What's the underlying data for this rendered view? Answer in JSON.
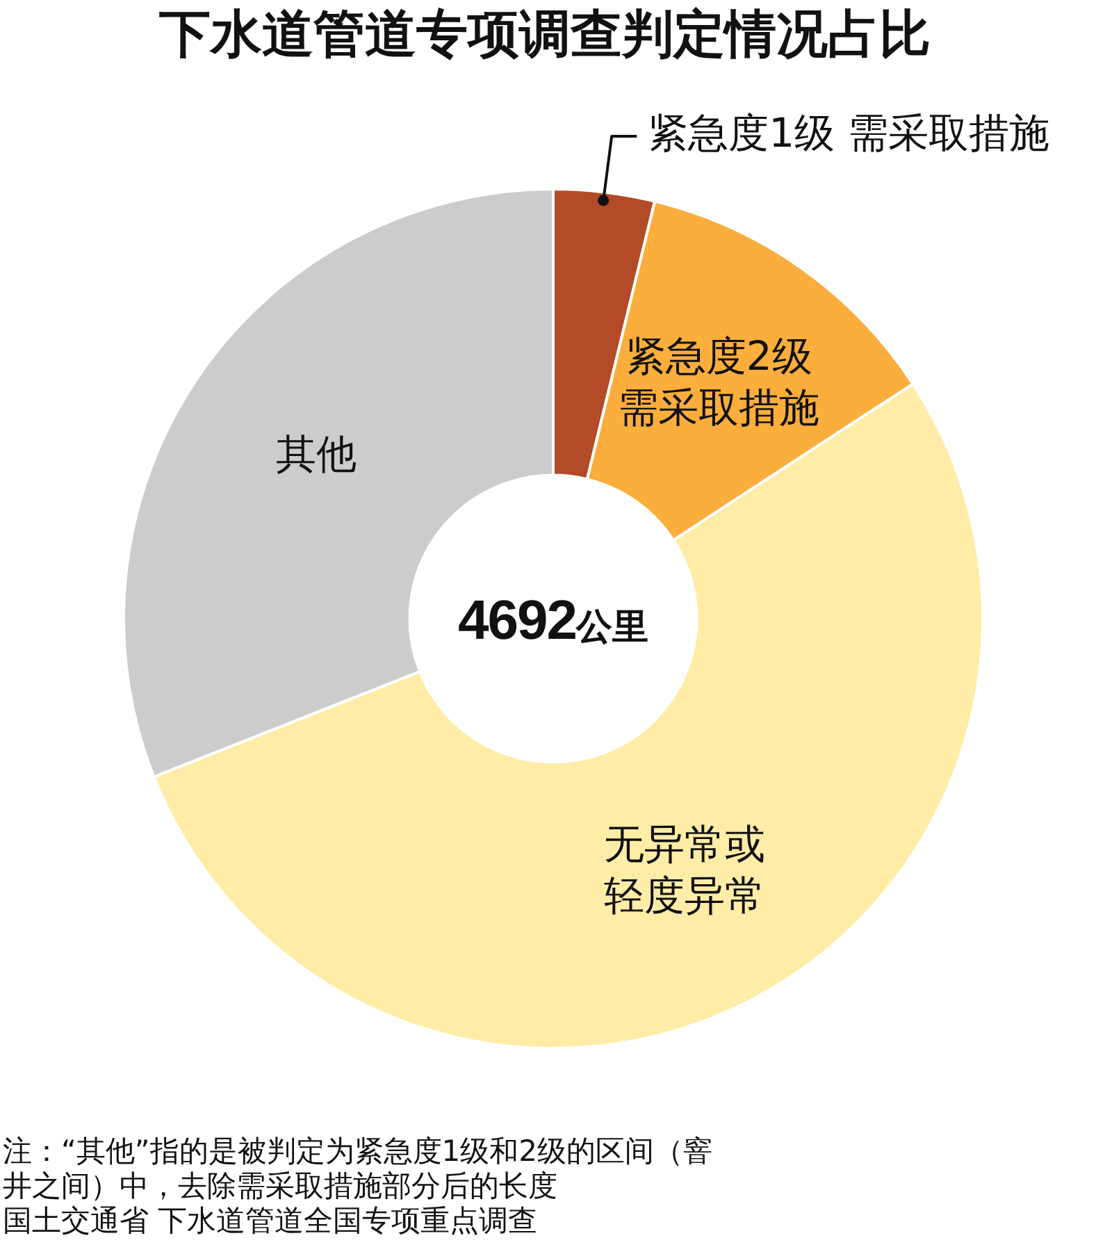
{
  "chart_data": {
    "type": "donut",
    "title": "下水道管道专项调查判定情况占比",
    "categories": [
      "紧急度1级 需采取措施",
      "紧急度2级需采取措施",
      "无异常或轻度异常",
      "其他"
    ],
    "values": [
      3.8,
      12,
      53.2,
      31
    ],
    "colors": [
      "#b34a28",
      "#fbae3c",
      "#ffeca6",
      "#cccccc"
    ],
    "legend": false,
    "annotations": [
      "4692公里",
      "注：“其他”指的是被判定为紧急度1级和2级的区间（窨井之间）中，去除需采取措施部分后的长度",
      "国土交通省 下水道管道全国专项重点调查"
    ]
  }
}
